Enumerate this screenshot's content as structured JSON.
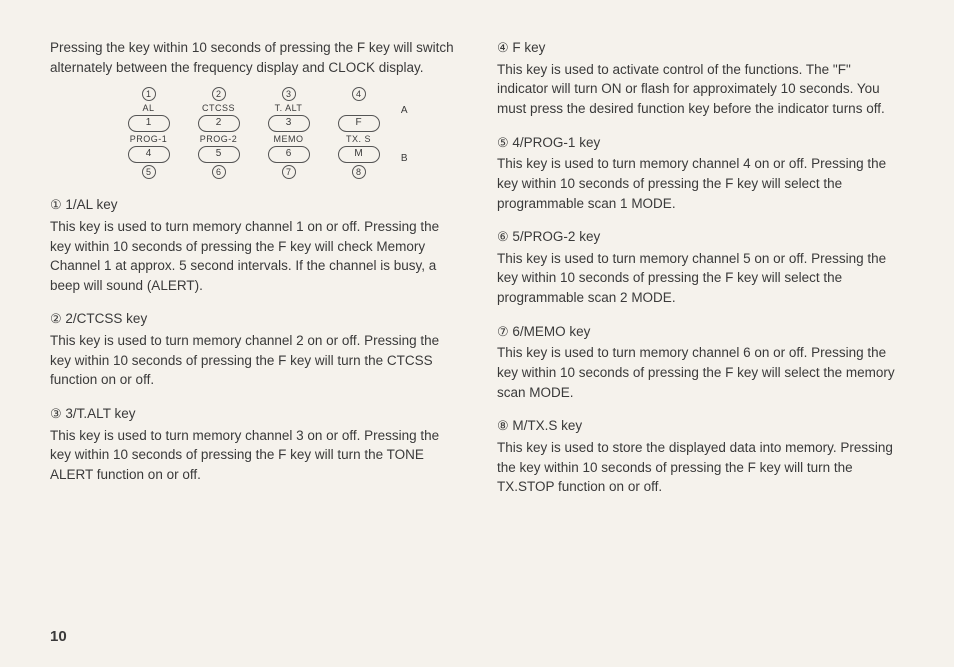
{
  "intro": "Pressing the key within 10 seconds of pressing the F key will switch alternately between the frequency display and CLOCK display.",
  "diagram": {
    "top_nums": [
      "①",
      "②",
      "③",
      "④"
    ],
    "top_labels": [
      "AL",
      "CTCSS",
      "T. ALT",
      ""
    ],
    "row1_keys": [
      "1",
      "2",
      "3",
      "F"
    ],
    "mid_labels": [
      "PROG-1",
      "PROG-2",
      "MEMO",
      "TX. S"
    ],
    "row2_keys": [
      "4",
      "5",
      "6",
      "M"
    ],
    "bot_nums": [
      "⑤",
      "⑥",
      "⑦",
      "⑧"
    ],
    "side_a": "A",
    "side_b": "B"
  },
  "left": [
    {
      "num": "①",
      "title": "1/AL key",
      "body": "This key is used to turn memory channel 1 on or off. Pressing the key within 10 seconds of pressing the F key will check Memory Channel 1 at approx. 5 second intervals. If the channel is busy, a beep will sound (ALERT)."
    },
    {
      "num": "②",
      "title": "2/CTCSS key",
      "body": "This key is used to turn memory channel 2 on or off. Pressing the key within 10 seconds of pressing the F key will turn the CTCSS function on or off."
    },
    {
      "num": "③",
      "title": "3/T.ALT key",
      "body": "This key is used to turn memory channel 3 on or off. Pressing the key within 10 seconds of pressing the F key will turn the TONE ALERT function on or off."
    }
  ],
  "right": [
    {
      "num": "④",
      "title": "F key",
      "body": "This key is used to activate control of the functions. The \"F\" indicator will turn ON or flash for approximately 10 seconds. You must press the desired function key before the indicator turns off."
    },
    {
      "num": "⑤",
      "title": "4/PROG-1 key",
      "body": "This key is used to turn memory channel 4 on or off. Pressing the key within 10 seconds of pressing the F key will select the programmable scan 1 MODE."
    },
    {
      "num": "⑥",
      "title": "5/PROG-2 key",
      "body": "This key is used to turn memory channel 5 on or off. Pressing the key within 10 seconds of pressing the F key will select the programmable scan 2 MODE."
    },
    {
      "num": "⑦",
      "title": "6/MEMO key",
      "body": "This key is used to turn memory channel 6 on or off. Pressing the key within 10 seconds of pressing the F key will select the memory scan MODE."
    },
    {
      "num": "⑧",
      "title": "M/TX.S key",
      "body": "This key is used to store the displayed data into memory. Pressing the key within 10 seconds of pressing the F key will turn the TX.STOP function on or off."
    }
  ],
  "page": "10"
}
